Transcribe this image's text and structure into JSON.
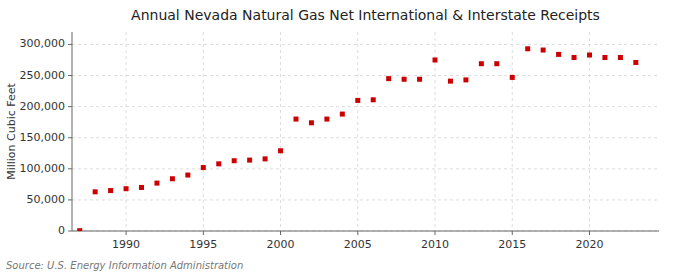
{
  "chart_data": {
    "type": "scatter",
    "title": "Annual Nevada Natural Gas Net International & Interstate Receipts",
    "ylabel": "Million Cubic Feet",
    "annotation": "Source: U.S. Energy Information Administration",
    "x": [
      1987,
      1988,
      1989,
      1990,
      1991,
      1992,
      1993,
      1994,
      1995,
      1996,
      1997,
      1998,
      1999,
      2000,
      2001,
      2002,
      2003,
      2004,
      2005,
      2006,
      2007,
      2008,
      2009,
      2010,
      2011,
      2012,
      2013,
      2014,
      2015,
      2016,
      2017,
      2018,
      2019,
      2020,
      2021,
      2022,
      2023
    ],
    "values": [
      500,
      63000,
      65000,
      68000,
      70000,
      77000,
      84000,
      90000,
      102000,
      108000,
      113000,
      114000,
      116000,
      129000,
      180000,
      174000,
      180000,
      188000,
      210000,
      211000,
      245000,
      244000,
      244000,
      275000,
      241000,
      243000,
      269000,
      269000,
      247000,
      293000,
      291000,
      284000,
      279000,
      283000,
      279000,
      279000,
      271000
    ],
    "color": "#cc0000",
    "marker": "square",
    "xlim": [
      1986.5,
      2024.5
    ],
    "xticks": [
      1990,
      1995,
      2000,
      2005,
      2010,
      2015,
      2020
    ],
    "ylim": [
      0,
      320000
    ],
    "yticks": [
      0,
      {
        "value": 50000,
        "label": "50,000"
      },
      {
        "value": 100000,
        "label": "100,000"
      },
      {
        "value": 150000,
        "label": "150,000"
      },
      {
        "value": 200000,
        "label": "200,000"
      },
      {
        "value": 250000,
        "label": "250,000"
      },
      {
        "value": 300000,
        "label": "300,000"
      }
    ],
    "grid": true
  }
}
